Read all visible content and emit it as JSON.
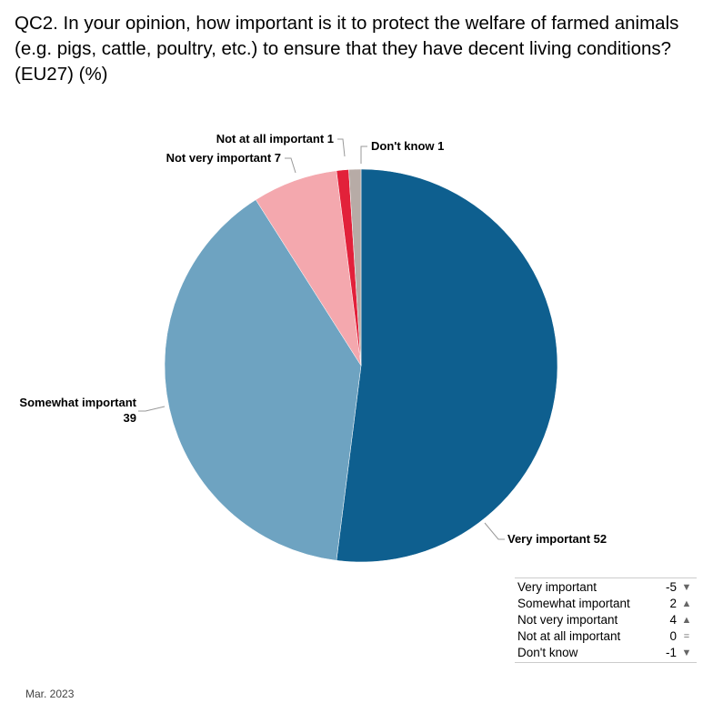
{
  "title": "QC2. In your opinion, how important is it to protect the welfare of farmed animals (e.g. pigs, cattle, poultry, etc.) to ensure that they have decent living conditions? (EU27) (%)",
  "chart_data": {
    "type": "pie",
    "slices": [
      {
        "label": "Very important",
        "value": 52,
        "color": "#0e5f8f"
      },
      {
        "label": "Somewhat important",
        "value": 39,
        "color": "#6ea3c1"
      },
      {
        "label": "Not very important",
        "value": 7,
        "color": "#f4a8ae"
      },
      {
        "label": "Not at all important",
        "value": 1,
        "color": "#e2213a"
      },
      {
        "label": "Don't know",
        "value": 1,
        "color": "#b7aba6"
      }
    ],
    "start": "top",
    "direction": "clockwise"
  },
  "change_table": {
    "rows": [
      {
        "label": "Very important",
        "value": "-5",
        "trend": "down"
      },
      {
        "label": "Somewhat important",
        "value": "2",
        "trend": "up"
      },
      {
        "label": "Not very important",
        "value": "4",
        "trend": "up"
      },
      {
        "label": "Not at all important",
        "value": "0",
        "trend": "equal"
      },
      {
        "label": "Don't know",
        "value": "-1",
        "trend": "down"
      }
    ]
  },
  "footer": "Mar. 2023"
}
